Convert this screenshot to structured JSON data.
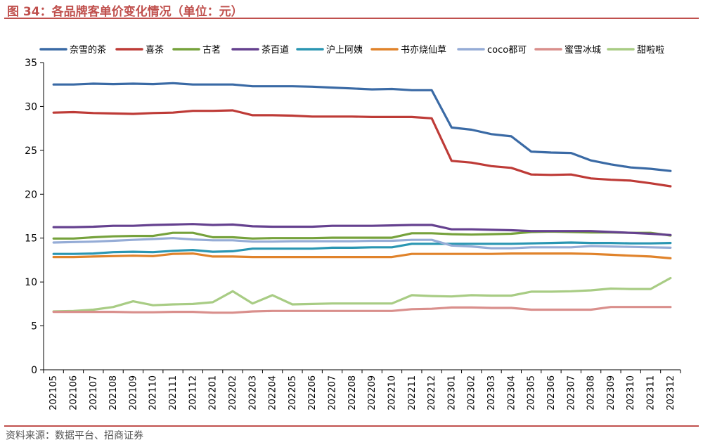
{
  "header": {
    "title": "图 34：各品牌客单价变化情况（单位：元）"
  },
  "footer": {
    "source": "资料来源：数据平台、招商证券"
  },
  "chart_data": {
    "type": "line",
    "title": "各品牌客单价变化情况（单位：元）",
    "xlabel": "",
    "ylabel": "",
    "ylim": [
      0,
      35
    ],
    "yticks": [
      0,
      5,
      10,
      15,
      20,
      25,
      30,
      35
    ],
    "grid": false,
    "legend_position": "top",
    "categories": [
      "202105",
      "202106",
      "202107",
      "202108",
      "202109",
      "202110",
      "202111",
      "202112",
      "202201",
      "202202",
      "202203",
      "202204",
      "202205",
      "202206",
      "202207",
      "202208",
      "202209",
      "202210",
      "202211",
      "202212",
      "202301",
      "202302",
      "202303",
      "202304",
      "202305",
      "202306",
      "202307",
      "202308",
      "202309",
      "202310",
      "202311",
      "202312"
    ],
    "series": [
      {
        "name": "奈雪的茶",
        "color": "#3a6aa5",
        "values": [
          32.5,
          32.5,
          32.6,
          32.55,
          32.6,
          32.55,
          32.65,
          32.5,
          32.5,
          32.5,
          32.3,
          32.3,
          32.3,
          32.25,
          32.15,
          32.05,
          31.95,
          32.0,
          31.85,
          31.85,
          27.6,
          27.35,
          26.85,
          26.6,
          24.85,
          24.75,
          24.7,
          23.85,
          23.4,
          23.05,
          22.9,
          22.65
        ]
      },
      {
        "name": "喜茶",
        "color": "#be3b37",
        "values": [
          29.3,
          29.35,
          29.25,
          29.2,
          29.15,
          29.25,
          29.3,
          29.5,
          29.5,
          29.55,
          29.0,
          29.0,
          28.95,
          28.85,
          28.85,
          28.85,
          28.8,
          28.8,
          28.8,
          28.65,
          23.8,
          23.6,
          23.2,
          23.0,
          22.25,
          22.2,
          22.25,
          21.8,
          21.65,
          21.55,
          21.25,
          20.9
        ]
      },
      {
        "name": "古茗",
        "color": "#76a23c",
        "values": [
          14.95,
          14.95,
          15.1,
          15.2,
          15.25,
          15.25,
          15.6,
          15.6,
          15.1,
          15.1,
          14.95,
          15.0,
          15.0,
          15.0,
          15.05,
          15.05,
          15.05,
          15.05,
          15.55,
          15.55,
          15.45,
          15.4,
          15.45,
          15.5,
          15.7,
          15.75,
          15.7,
          15.65,
          15.65,
          15.6,
          15.6,
          15.3
        ]
      },
      {
        "name": "茶百道",
        "color": "#65418f",
        "values": [
          16.25,
          16.25,
          16.3,
          16.4,
          16.4,
          16.5,
          16.55,
          16.6,
          16.5,
          16.55,
          16.35,
          16.3,
          16.3,
          16.3,
          16.4,
          16.4,
          16.4,
          16.45,
          16.5,
          16.5,
          16.0,
          16.0,
          15.95,
          15.9,
          15.8,
          15.8,
          15.8,
          15.8,
          15.7,
          15.6,
          15.5,
          15.35
        ]
      },
      {
        "name": "沪上阿姨",
        "color": "#2a96b2",
        "values": [
          13.2,
          13.2,
          13.25,
          13.4,
          13.45,
          13.4,
          13.55,
          13.65,
          13.45,
          13.5,
          13.8,
          13.8,
          13.8,
          13.8,
          13.9,
          13.9,
          13.95,
          13.95,
          14.35,
          14.35,
          14.35,
          14.35,
          14.35,
          14.35,
          14.4,
          14.45,
          14.5,
          14.45,
          14.45,
          14.4,
          14.4,
          14.45
        ]
      },
      {
        "name": "书亦烧仙草",
        "color": "#e0832b",
        "values": [
          12.85,
          12.85,
          12.9,
          12.95,
          13.0,
          12.95,
          13.2,
          13.25,
          12.9,
          12.9,
          12.85,
          12.85,
          12.85,
          12.85,
          12.85,
          12.85,
          12.85,
          12.85,
          13.2,
          13.2,
          13.2,
          13.2,
          13.2,
          13.25,
          13.25,
          13.25,
          13.25,
          13.2,
          13.1,
          13.0,
          12.9,
          12.7
        ]
      },
      {
        "name": "coco都可",
        "color": "#95acd6",
        "values": [
          14.5,
          14.55,
          14.6,
          14.7,
          14.8,
          14.9,
          15.0,
          14.85,
          14.75,
          14.75,
          14.6,
          14.6,
          14.65,
          14.65,
          14.65,
          14.65,
          14.7,
          14.7,
          14.8,
          14.8,
          14.15,
          14.05,
          13.85,
          13.85,
          13.95,
          13.95,
          13.95,
          14.1,
          14.05,
          14.0,
          13.95,
          13.9
        ]
      },
      {
        "name": "蜜雪冰城",
        "color": "#d98f8c",
        "values": [
          6.6,
          6.6,
          6.6,
          6.6,
          6.55,
          6.55,
          6.6,
          6.6,
          6.5,
          6.5,
          6.65,
          6.7,
          6.7,
          6.7,
          6.7,
          6.7,
          6.7,
          6.7,
          6.9,
          6.95,
          7.1,
          7.1,
          7.05,
          7.05,
          6.85,
          6.85,
          6.85,
          6.85,
          7.15,
          7.15,
          7.15,
          7.15
        ]
      },
      {
        "name": "甜啦啦",
        "color": "#a8cc84",
        "values": [
          6.65,
          6.7,
          6.85,
          7.15,
          7.8,
          7.35,
          7.45,
          7.5,
          7.7,
          8.95,
          7.55,
          8.5,
          7.45,
          7.5,
          7.55,
          7.55,
          7.55,
          7.55,
          8.5,
          8.4,
          8.35,
          8.5,
          8.45,
          8.45,
          8.9,
          8.9,
          8.95,
          9.05,
          9.25,
          9.2,
          9.2,
          10.45
        ]
      }
    ]
  }
}
